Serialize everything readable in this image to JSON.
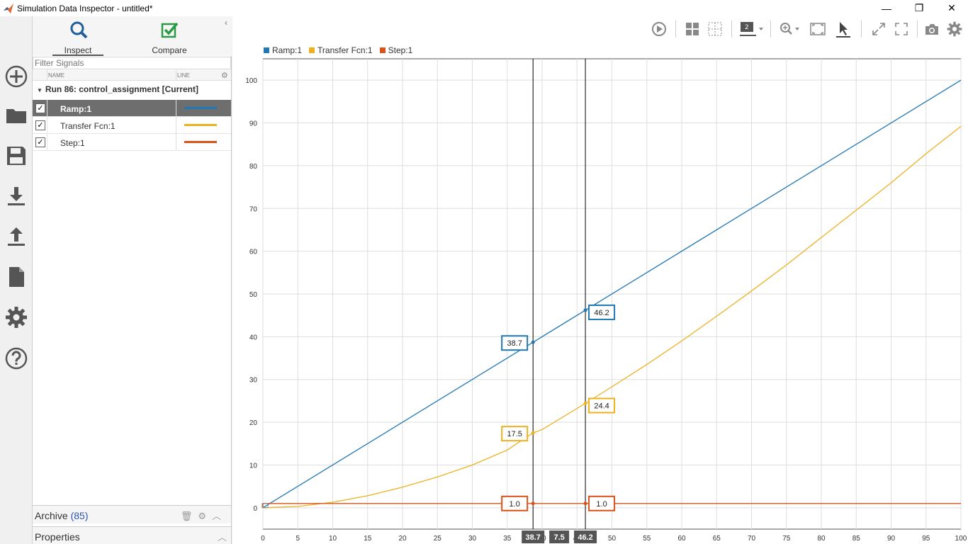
{
  "window": {
    "title": "Simulation Data Inspector - untitled*",
    "minimize": "—",
    "restore": "❐",
    "close": "✕"
  },
  "rail": {
    "items": [
      "new-icon",
      "open-folder-icon",
      "save-icon",
      "import-icon",
      "export-icon",
      "report-icon",
      "settings-icon",
      "help-icon"
    ]
  },
  "tabs": {
    "inspect": "Inspect",
    "compare": "Compare",
    "collapse": "‹"
  },
  "filter": {
    "placeholder": "Filter Signals"
  },
  "columns": {
    "name": "NAME",
    "line": "LINE",
    "gear": "⚙"
  },
  "run": {
    "label": "Run 86: control_assignment [Current]"
  },
  "signals": [
    {
      "name": "Ramp:1",
      "color": "#1f77b4",
      "checked": "✓",
      "selected": true
    },
    {
      "name": "Transfer Fcn:1",
      "color": "#edb120",
      "checked": "✓",
      "selected": false
    },
    {
      "name": "Step:1",
      "color": "#d95319",
      "checked": "✓",
      "selected": false
    }
  ],
  "archive": {
    "label": "Archive",
    "count": "(85)"
  },
  "properties": {
    "label": "Properties"
  },
  "colors": {
    "ramp": "#1f77b4",
    "tf": "#edb120",
    "step": "#d95319"
  },
  "chart_data": {
    "type": "line",
    "legend": [
      "Ramp:1",
      "Transfer Fcn:1",
      "Step:1"
    ],
    "legend_position": "top-left",
    "xlim": [
      0,
      100
    ],
    "ylim": [
      -5,
      105
    ],
    "xticks": [
      0,
      5,
      10,
      15,
      20,
      25,
      30,
      35,
      40,
      45,
      50,
      55,
      60,
      65,
      70,
      75,
      80,
      85,
      90,
      95,
      100
    ],
    "yticks": [
      0,
      10,
      20,
      30,
      40,
      50,
      60,
      70,
      80,
      90,
      100
    ],
    "grid": true,
    "series": [
      {
        "name": "Ramp:1",
        "color": "#1f77b4",
        "x": [
          0,
          100
        ],
        "y": [
          0,
          100
        ]
      },
      {
        "name": "Transfer Fcn:1",
        "color": "#edb120",
        "x": [
          0,
          5,
          10,
          15,
          20,
          25,
          30,
          35,
          38.7,
          40,
          46.2,
          50,
          55,
          60,
          65,
          70,
          75,
          80,
          85,
          90,
          95,
          100
        ],
        "y": [
          0,
          0.3,
          1.3,
          2.8,
          4.8,
          7.2,
          10.0,
          13.5,
          17.5,
          18.3,
          24.4,
          28.3,
          33.5,
          39.0,
          44.8,
          50.7,
          56.8,
          63.2,
          69.6,
          76.0,
          82.8,
          89.2
        ]
      },
      {
        "name": "Step:1",
        "color": "#d95319",
        "x": [
          0,
          0.01,
          100
        ],
        "y": [
          0,
          1,
          1
        ]
      }
    ],
    "cursors": [
      {
        "x": 38.7,
        "x_label": "38.7",
        "readouts": [
          {
            "series": "Ramp:1",
            "value": 38.7,
            "label": "38.7"
          },
          {
            "series": "Transfer Fcn:1",
            "value": 17.5,
            "label": "17.5"
          },
          {
            "series": "Step:1",
            "value": 1.0,
            "label": "1.0"
          }
        ]
      },
      {
        "x": 46.2,
        "x_label": "46.2",
        "readouts": [
          {
            "series": "Ramp:1",
            "value": 46.2,
            "label": "46.2"
          },
          {
            "series": "Transfer Fcn:1",
            "value": 24.4,
            "label": "24.4"
          },
          {
            "series": "Step:1",
            "value": 1.0,
            "label": "1.0"
          }
        ]
      }
    ],
    "cursor_delta": "7.5"
  }
}
